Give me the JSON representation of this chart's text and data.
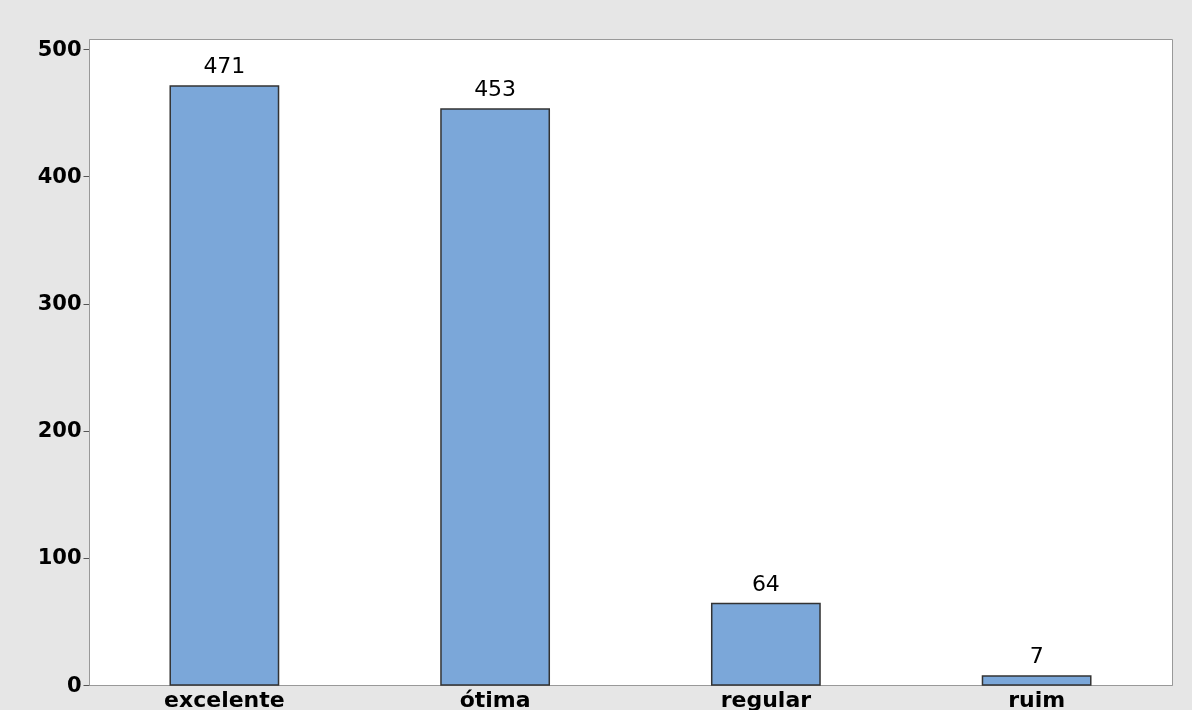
{
  "chart_data": {
    "type": "bar",
    "categories": [
      "excelente",
      "ótima",
      "regular",
      "ruim"
    ],
    "values": [
      471,
      453,
      64,
      7
    ],
    "color": "#7ba7d9",
    "ylim": [
      0,
      508
    ],
    "yticks": [
      0,
      100,
      200,
      300,
      400,
      500
    ],
    "data_labels": true,
    "grid": false
  }
}
